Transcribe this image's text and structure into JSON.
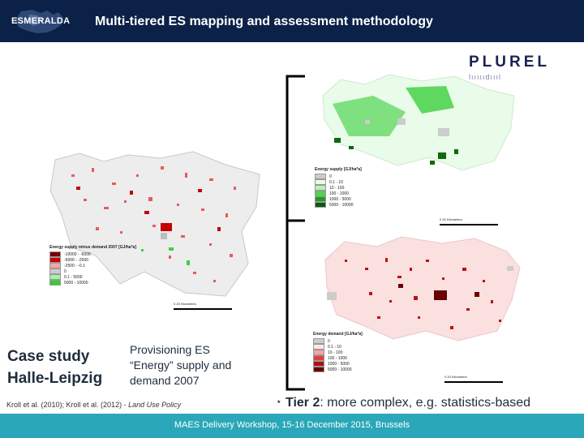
{
  "header": {
    "logo_text": "ESMERALDA",
    "title": "Multi-tiered ES mapping and assessment methodology"
  },
  "plurel": {
    "word": "PLUREL",
    "sub": "lıııııdıııl"
  },
  "left_map": {
    "legend_title": "Energy supply minus demand 2007 [GJ/ha*a]",
    "legend": [
      "-10000 - -5000",
      "-5000 - -2500",
      "-2500 - -0.1",
      "0",
      "0.1 - 5000",
      "5000 - 10000"
    ],
    "legend_colors": [
      "#7a0000",
      "#cc0000",
      "#f4a6a6",
      "#cccccc",
      "#a8f0a8",
      "#33cc33"
    ],
    "scale": "0   20 Kilometers"
  },
  "top_right_map": {
    "legend_title": "Energy supply [GJ/ha*a]",
    "legend": [
      "0",
      "0.1 - 10",
      "10 - 100",
      "100 - 1000",
      "1000 - 5000",
      "5000 - 10000"
    ],
    "legend_colors": [
      "#cccccc",
      "#e8fbe8",
      "#b6f3b6",
      "#4cd64c",
      "#1e9e1e",
      "#0a5a0a"
    ],
    "scale": "0   20 Kilometers"
  },
  "bottom_right_map": {
    "legend_title": "Energy demand [GJ/ha*a]",
    "legend": [
      "0",
      "0.1 - 10",
      "10 - 100",
      "100 - 1000",
      "1000 - 5000",
      "5000 - 10000"
    ],
    "legend_colors": [
      "#cccccc",
      "#fde6e6",
      "#f5a3a3",
      "#e04040",
      "#b01010",
      "#6a0000"
    ],
    "scale": "0   20 Kilometers"
  },
  "case_study": {
    "line1": "Case study",
    "line2": "Halle-Leipzig"
  },
  "provision": {
    "line1": "Provisioning ES",
    "line2": "“Energy” supply and",
    "line3": "demand 2007"
  },
  "citation": {
    "main": "Kroll et al. (2010); Kroll et al. (2012) - ",
    "journal": "Land Use Policy"
  },
  "tier": {
    "star": "⋆",
    "label": "Tier 2",
    "rest": ": more complex, e.g. statistics-based"
  },
  "footer": {
    "text": "MAES Delivery Workshop, 15-16 December 2015, Brussels"
  }
}
